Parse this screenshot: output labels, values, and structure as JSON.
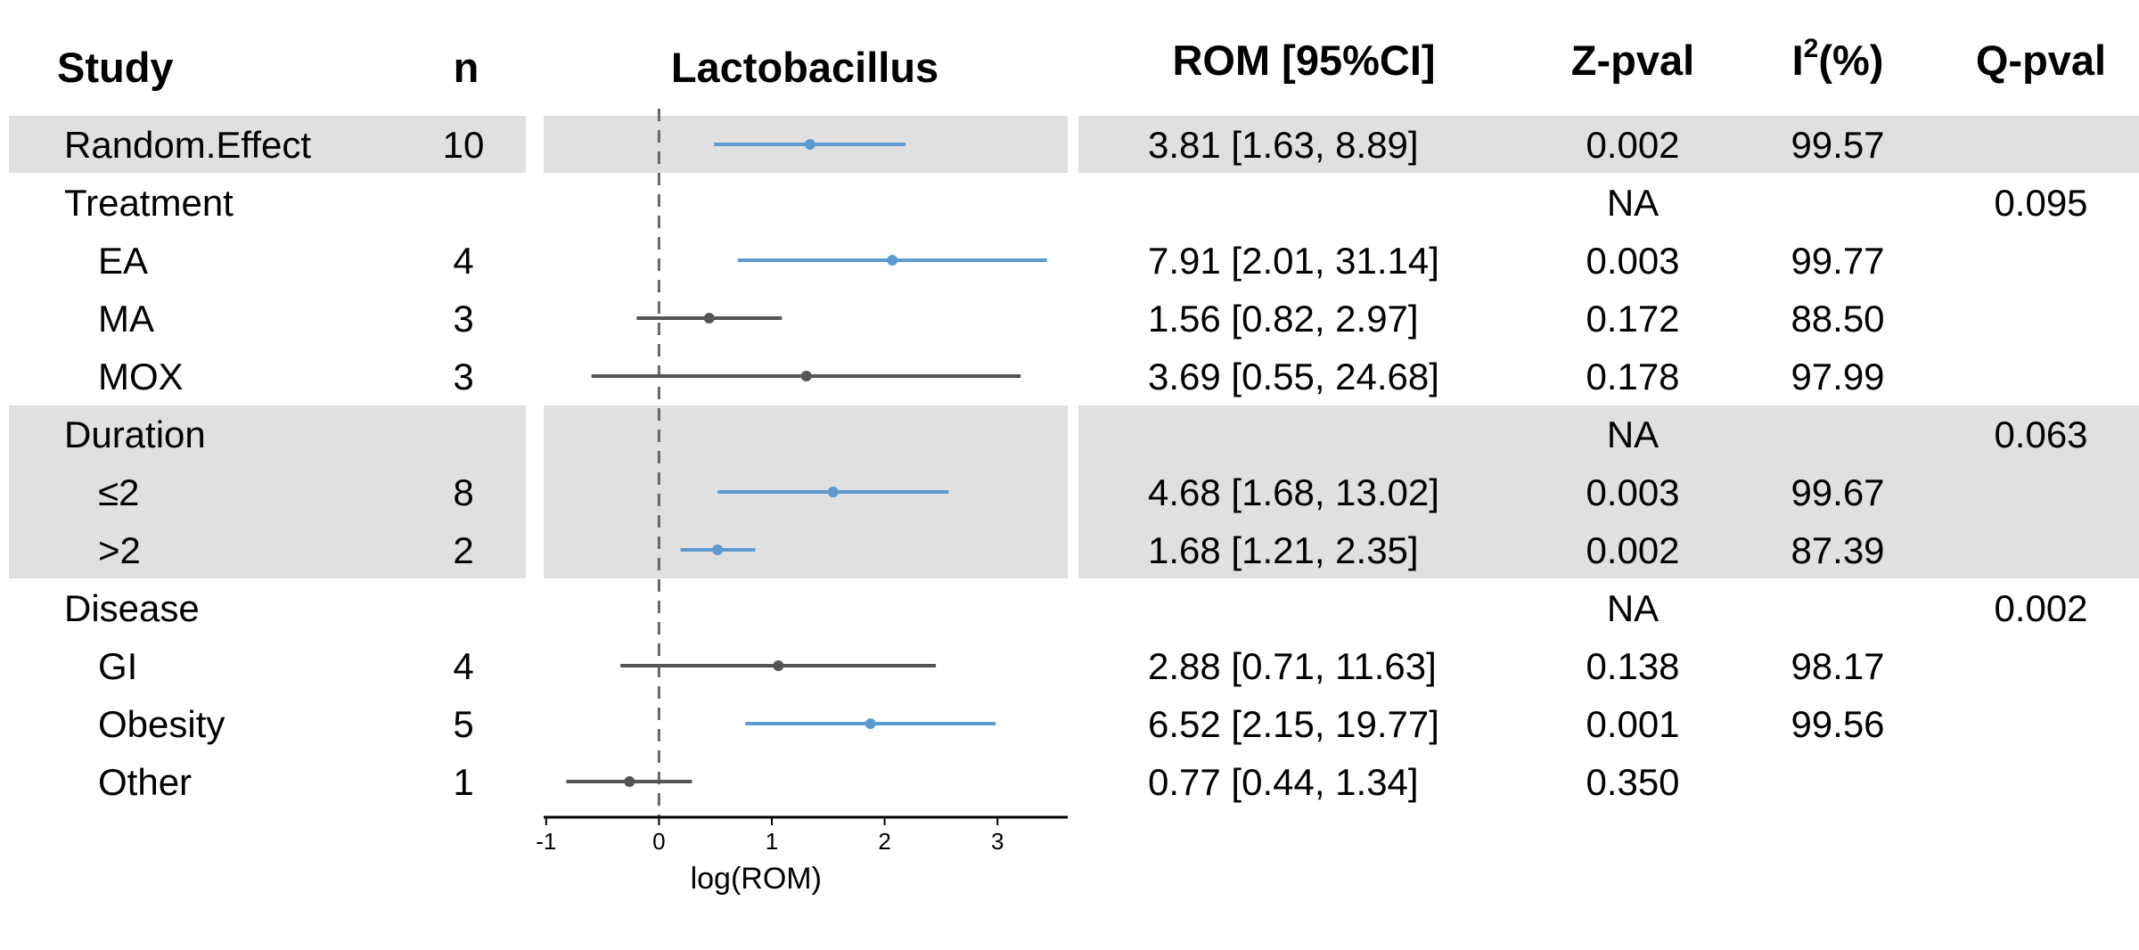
{
  "headers": {
    "study": "Study",
    "n": "n",
    "plot": "Lactobacillus",
    "rom": "ROM [95%CI]",
    "zpval": "Z-pval",
    "i2_base": "I",
    "i2_sup": "2",
    "i2_suffix": "(%)",
    "qpval": "Q-pval"
  },
  "colors": {
    "significant": "#5b9bd0",
    "nonsignificant": "#555555",
    "band": "#e0e0e0",
    "reference_line": "#666666"
  },
  "chart_data": {
    "type": "forest",
    "title": "Lactobacillus",
    "xlabel": "log(ROM)",
    "xlim": [
      -1,
      3.65
    ],
    "xticks": [
      "-1",
      "0",
      "1",
      "2",
      "3"
    ],
    "reference_line": 0,
    "rows": [
      {
        "label": "Random.Effect",
        "indent": false,
        "shaded": true,
        "n": "10",
        "est": 1.338,
        "lo": 0.489,
        "hi": 2.185,
        "significant": true,
        "rom": "3.81 [1.63, 8.89]",
        "zpval": "0.002",
        "i2": "99.57",
        "qpval": ""
      },
      {
        "label": "Treatment",
        "indent": false,
        "shaded": false,
        "n": "",
        "est": null,
        "lo": null,
        "hi": null,
        "significant": false,
        "rom": "",
        "zpval": "NA",
        "i2": "",
        "qpval": "0.095"
      },
      {
        "label": "EA",
        "indent": true,
        "shaded": false,
        "n": "4",
        "est": 2.068,
        "lo": 0.698,
        "hi": 3.438,
        "significant": true,
        "rom": "7.91 [2.01, 31.14]",
        "zpval": "0.003",
        "i2": "99.77",
        "qpval": ""
      },
      {
        "label": "MA",
        "indent": true,
        "shaded": false,
        "n": "3",
        "est": 0.445,
        "lo": -0.198,
        "hi": 1.089,
        "significant": false,
        "rom": "1.56 [0.82, 2.97]",
        "zpval": "0.172",
        "i2": "88.50",
        "qpval": ""
      },
      {
        "label": "MOX",
        "indent": true,
        "shaded": false,
        "n": "3",
        "est": 1.306,
        "lo": -0.598,
        "hi": 3.206,
        "significant": false,
        "rom": "3.69 [0.55, 24.68]",
        "zpval": "0.178",
        "i2": "97.99",
        "qpval": ""
      },
      {
        "label": "Duration",
        "indent": false,
        "shaded": true,
        "n": "",
        "est": null,
        "lo": null,
        "hi": null,
        "significant": false,
        "rom": "",
        "zpval": "NA",
        "i2": "",
        "qpval": "0.063"
      },
      {
        "label": "≤2",
        "indent": true,
        "shaded": true,
        "n": "8",
        "est": 1.543,
        "lo": 0.519,
        "hi": 2.567,
        "significant": true,
        "rom": "4.68 [1.68, 13.02]",
        "zpval": "0.003",
        "i2": "99.67",
        "qpval": ""
      },
      {
        "label": ">2",
        "indent": true,
        "shaded": true,
        "n": "2",
        "est": 0.519,
        "lo": 0.191,
        "hi": 0.854,
        "significant": true,
        "rom": "1.68 [1.21, 2.35]",
        "zpval": "0.002",
        "i2": "87.39",
        "qpval": ""
      },
      {
        "label": "Disease",
        "indent": false,
        "shaded": false,
        "n": "",
        "est": null,
        "lo": null,
        "hi": null,
        "significant": false,
        "rom": "",
        "zpval": "NA",
        "i2": "",
        "qpval": "0.002"
      },
      {
        "label": "GI",
        "indent": true,
        "shaded": false,
        "n": "4",
        "est": 1.058,
        "lo": -0.342,
        "hi": 2.454,
        "significant": false,
        "rom": "2.88 [0.71, 11.63]",
        "zpval": "0.138",
        "i2": "98.17",
        "qpval": ""
      },
      {
        "label": "Obesity",
        "indent": true,
        "shaded": false,
        "n": "5",
        "est": 1.875,
        "lo": 0.765,
        "hi": 2.984,
        "significant": true,
        "rom": "6.52 [2.15, 19.77]",
        "zpval": "0.001",
        "i2": "99.56",
        "qpval": ""
      },
      {
        "label": "Other",
        "indent": true,
        "shaded": false,
        "n": "1",
        "est": -0.261,
        "lo": -0.821,
        "hi": 0.293,
        "significant": false,
        "rom": "0.77 [0.44, 1.34]",
        "zpval": "0.350",
        "i2": "",
        "qpval": ""
      }
    ]
  }
}
